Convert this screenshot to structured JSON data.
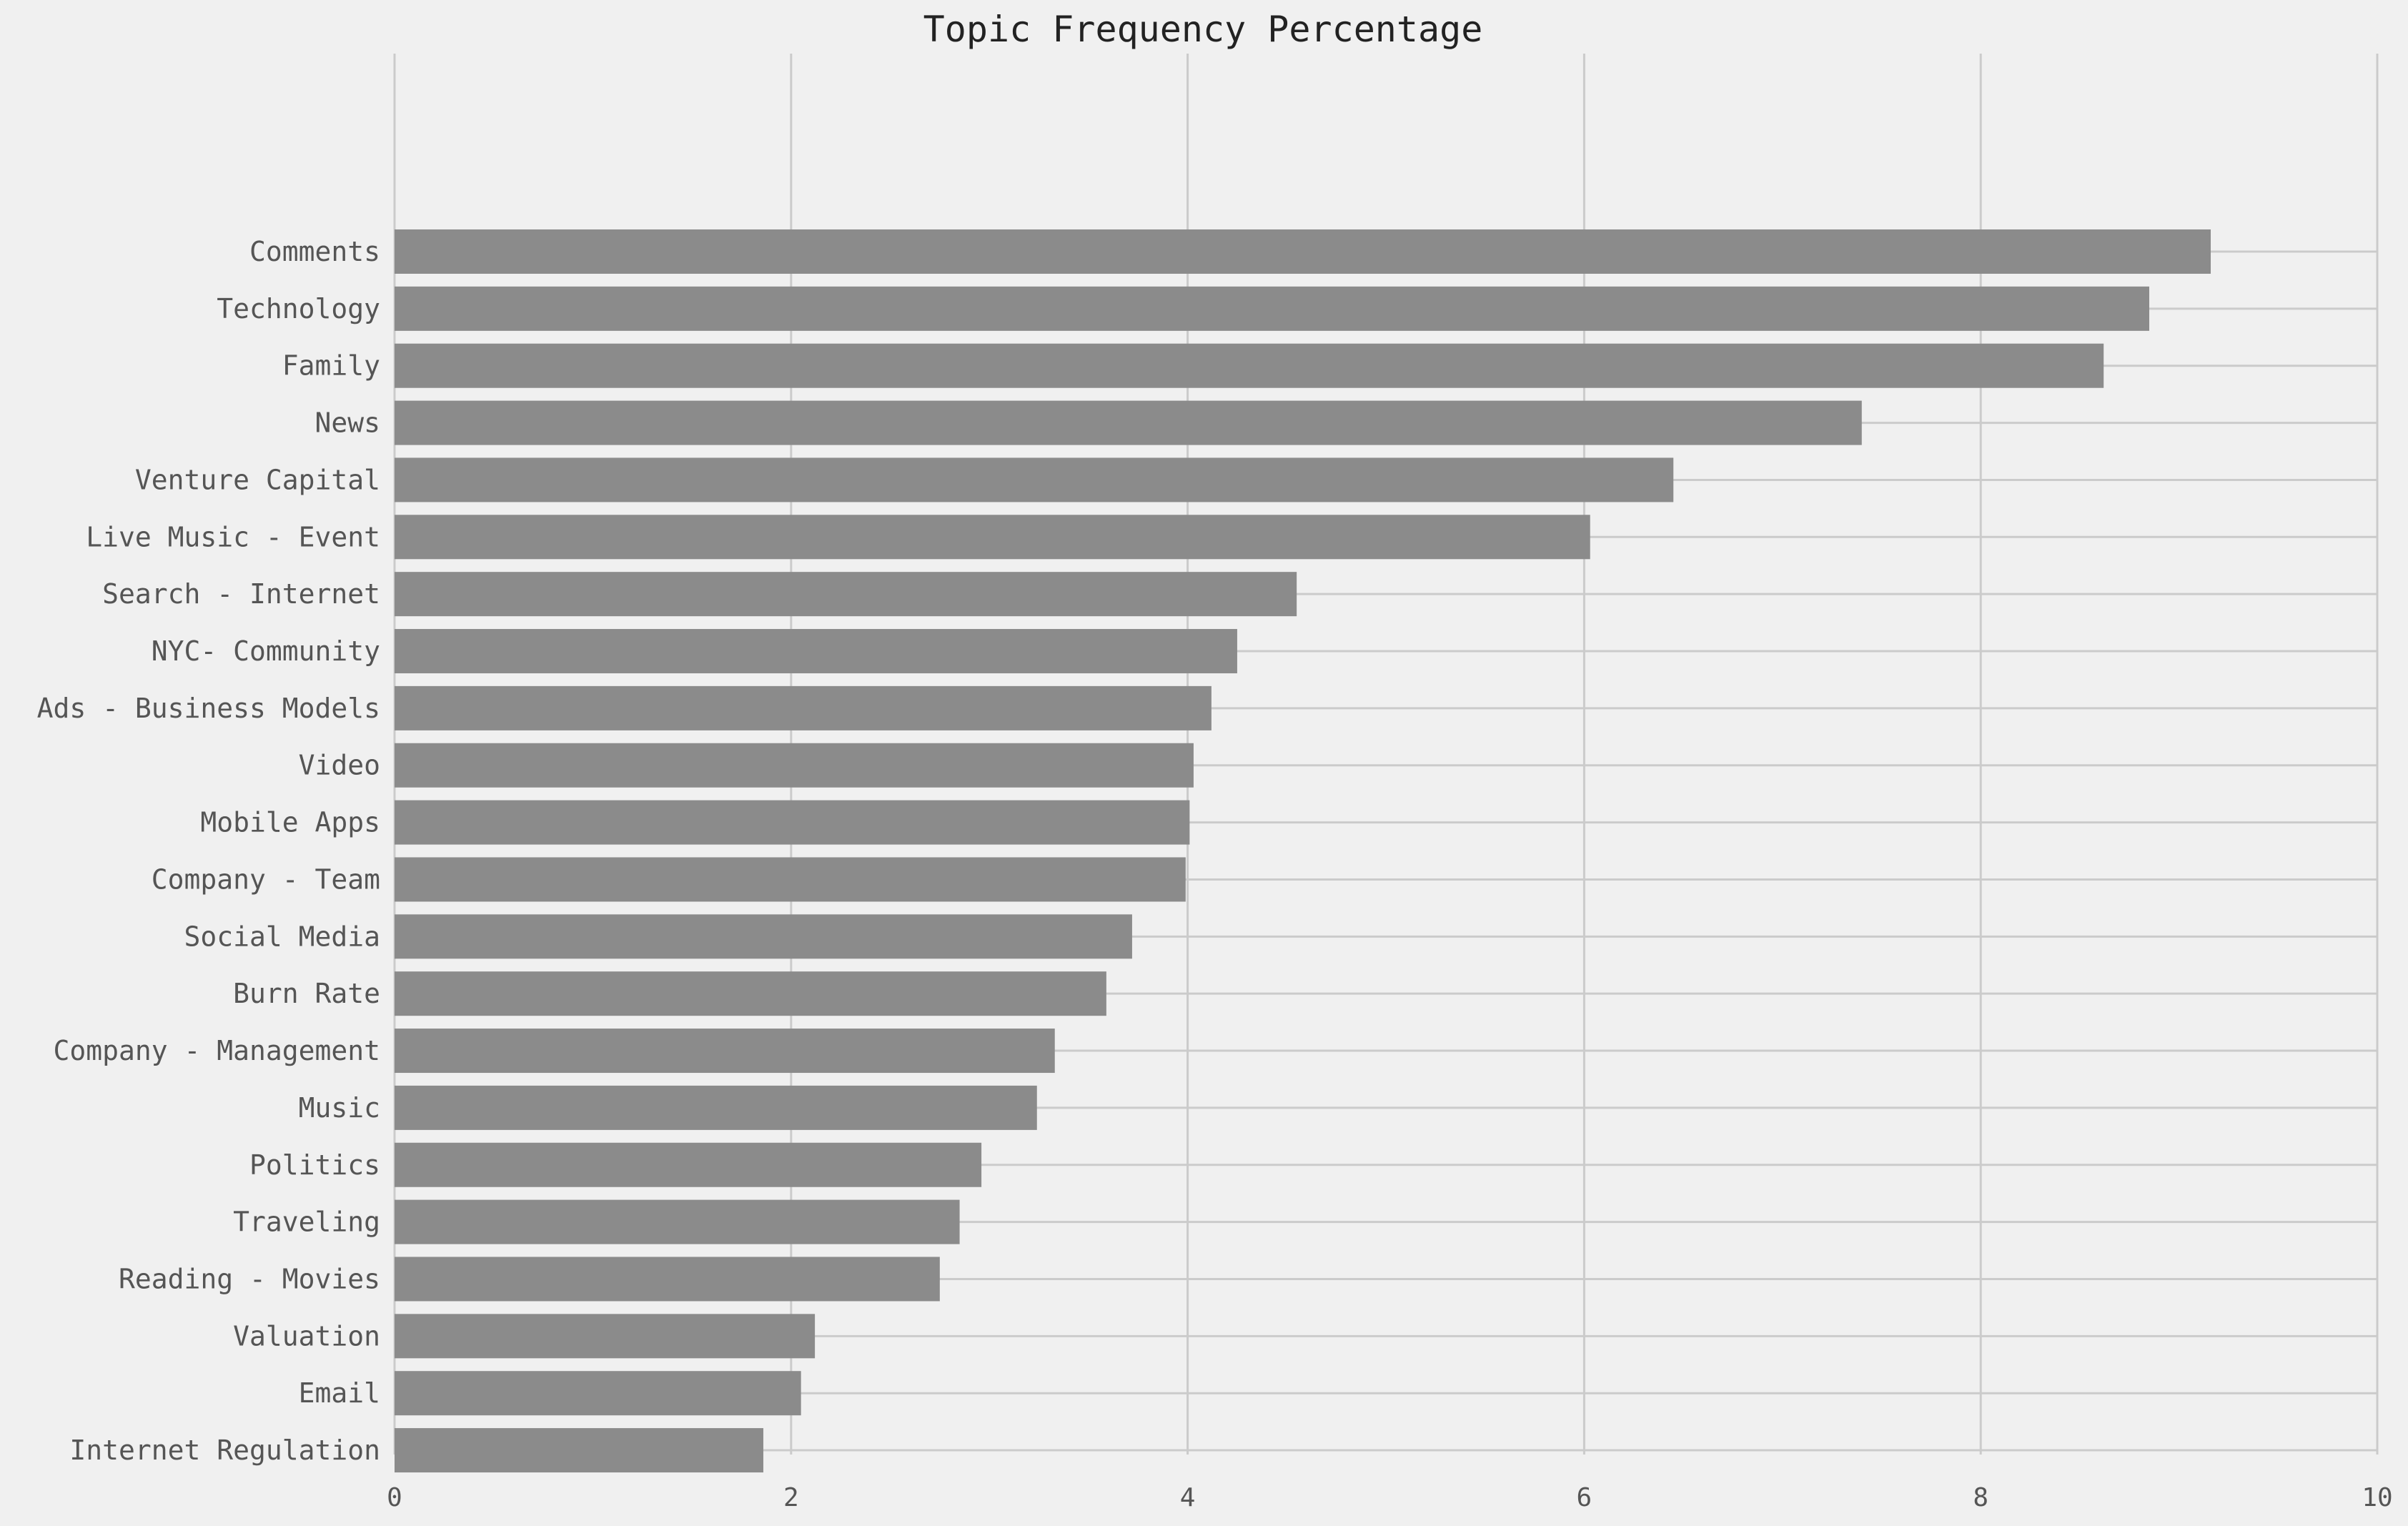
{
  "chart_data": {
    "type": "bar",
    "orientation": "horizontal",
    "title": "Topic Frequency Percentage",
    "xlabel": "",
    "ylabel": "",
    "xlim": [
      0,
      10
    ],
    "xticks": [
      "0",
      "2",
      "4",
      "6",
      "8",
      "10"
    ],
    "grid": true,
    "bar_color": "#8b8b8b",
    "grid_color": "#cbcbcb",
    "background": "#f0f0f0",
    "categories": [
      "Comments",
      "Technology",
      "Family",
      "News",
      "Venture Capital",
      "Live Music - Event",
      "Search - Internet",
      "NYC- Community",
      "Ads - Business Models",
      "Video",
      "Mobile Apps",
      "Company - Team",
      "Social Media",
      "Burn Rate",
      "Company - Management",
      "Music",
      "Politics",
      "Traveling",
      "Reading - Movies",
      "Valuation",
      "Email",
      "Internet Regulation"
    ],
    "values": [
      9.16,
      8.85,
      8.62,
      7.4,
      6.45,
      6.03,
      4.55,
      4.25,
      4.12,
      4.03,
      4.01,
      3.99,
      3.72,
      3.59,
      3.33,
      3.24,
      2.96,
      2.85,
      2.75,
      2.12,
      2.05,
      1.86
    ]
  }
}
